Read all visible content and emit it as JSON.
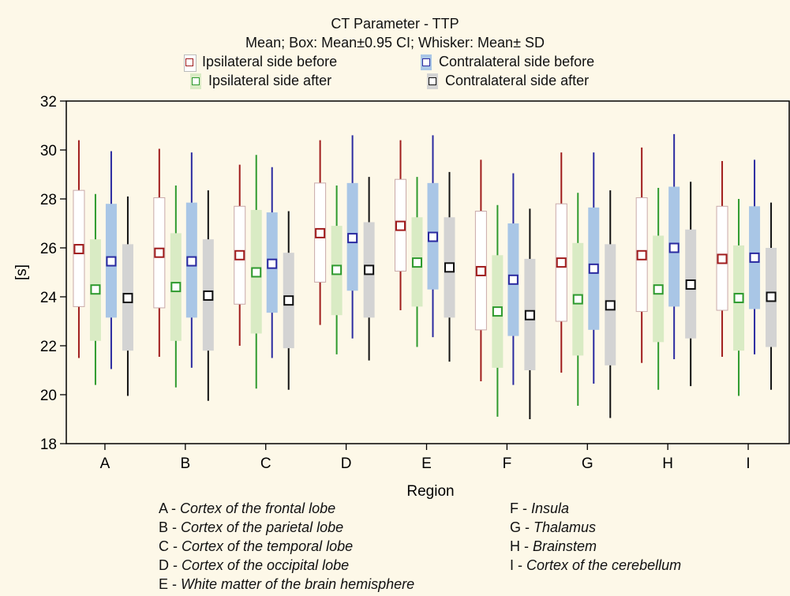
{
  "chart_data": {
    "type": "boxplot",
    "title": "CT Parameter - TTP",
    "subtitle": "Mean; Box: Mean±0.95 CI; Whisker: Mean± SD",
    "xlabel": "Region",
    "ylabel": "[s]",
    "ylim": [
      18,
      32
    ],
    "yticks": [
      18,
      20,
      22,
      24,
      26,
      28,
      30,
      32
    ],
    "categories": [
      "A",
      "B",
      "C",
      "D",
      "E",
      "F",
      "G",
      "H",
      "I"
    ],
    "series": [
      {
        "name": "Ipsilateral side before",
        "marker_color": "#a01c1c",
        "box_color": "#ffffff",
        "line_color": "#a01c1c",
        "mean": [
          25.95,
          25.8,
          25.7,
          26.6,
          26.9,
          25.05,
          25.4,
          25.7,
          25.55
        ],
        "box_low": [
          23.6,
          23.55,
          23.7,
          24.6,
          25.05,
          22.65,
          23.0,
          23.4,
          23.45
        ],
        "box_high": [
          28.35,
          28.05,
          27.7,
          28.65,
          28.8,
          27.5,
          27.8,
          28.05,
          27.7
        ],
        "whisker_low": [
          21.5,
          21.55,
          22.0,
          22.85,
          23.45,
          20.55,
          20.9,
          21.3,
          21.55
        ],
        "whisker_high": [
          30.4,
          30.05,
          29.4,
          30.4,
          30.4,
          29.6,
          29.9,
          30.1,
          29.55
        ]
      },
      {
        "name": "Ipsilateral side after",
        "marker_color": "#2e9a2e",
        "box_color": "#d9ebc4",
        "line_color": "#2e9a2e",
        "mean": [
          24.3,
          24.4,
          25.0,
          25.1,
          25.4,
          23.4,
          23.9,
          24.3,
          23.95
        ],
        "box_low": [
          22.2,
          22.2,
          22.5,
          23.25,
          23.6,
          21.1,
          21.6,
          22.15,
          21.8
        ],
        "box_high": [
          26.35,
          26.6,
          27.55,
          26.9,
          27.25,
          25.7,
          26.2,
          26.5,
          26.1
        ],
        "whisker_low": [
          20.4,
          20.3,
          20.25,
          21.65,
          21.95,
          19.1,
          19.55,
          20.2,
          19.95
        ],
        "whisker_high": [
          28.2,
          28.55,
          29.8,
          28.55,
          28.9,
          27.75,
          28.25,
          28.45,
          28.0
        ]
      },
      {
        "name": "Contralateral side before",
        "marker_color": "#2a2aa0",
        "box_color": "#a9c6e6",
        "line_color": "#2a2aa0",
        "mean": [
          25.45,
          25.45,
          25.35,
          26.4,
          26.45,
          24.7,
          25.15,
          26.0,
          25.6
        ],
        "box_low": [
          23.15,
          23.15,
          23.35,
          24.25,
          24.3,
          22.4,
          22.65,
          23.6,
          23.5
        ],
        "box_high": [
          27.8,
          27.85,
          27.45,
          28.65,
          28.65,
          27.0,
          27.65,
          28.5,
          27.7
        ],
        "whisker_low": [
          21.05,
          21.1,
          21.5,
          22.3,
          22.35,
          20.4,
          20.45,
          21.45,
          21.65
        ],
        "whisker_high": [
          29.95,
          29.9,
          29.3,
          30.6,
          30.6,
          29.05,
          29.9,
          30.65,
          29.6
        ]
      },
      {
        "name": "Contralateral side after",
        "marker_color": "#111111",
        "box_color": "#d3d3d3",
        "line_color": "#111111",
        "mean": [
          23.95,
          24.05,
          23.85,
          25.1,
          25.2,
          23.25,
          23.65,
          24.5,
          24.0
        ],
        "box_low": [
          21.8,
          21.8,
          21.9,
          23.15,
          23.15,
          21.0,
          21.2,
          22.3,
          21.95
        ],
        "box_high": [
          26.15,
          26.35,
          25.8,
          27.05,
          27.25,
          25.55,
          26.15,
          26.75,
          26.0
        ],
        "whisker_low": [
          19.95,
          19.75,
          20.2,
          21.4,
          21.35,
          19.0,
          19.05,
          20.35,
          20.2
        ],
        "whisker_high": [
          28.1,
          28.35,
          27.5,
          28.9,
          29.1,
          27.6,
          28.35,
          28.7,
          27.85
        ]
      }
    ],
    "legend": {
      "ipsi_before": "Ipsilateral side before",
      "contra_before": "Contralateral side before",
      "ipsi_after": "Ipsilateral side after",
      "contra_after": "Contralateral side after"
    }
  },
  "region_key": {
    "left": [
      {
        "code": "A - ",
        "name": "Cortex of the frontal lobe"
      },
      {
        "code": "B - ",
        "name": "Cortex of the parietal lobe"
      },
      {
        "code": "C - ",
        "name": "Cortex of the temporal lobe"
      },
      {
        "code": "D - ",
        "name": "Cortex of the occipital lobe"
      },
      {
        "code": "E - ",
        "name": "White matter of the brain hemisphere"
      }
    ],
    "right": [
      {
        "code": "F - ",
        "name": "Insula"
      },
      {
        "code": "G - ",
        "name": "Thalamus"
      },
      {
        "code": "H - ",
        "name": "Brainstem"
      },
      {
        "code": "I - ",
        "name": "Cortex of the cerebellum"
      }
    ]
  }
}
